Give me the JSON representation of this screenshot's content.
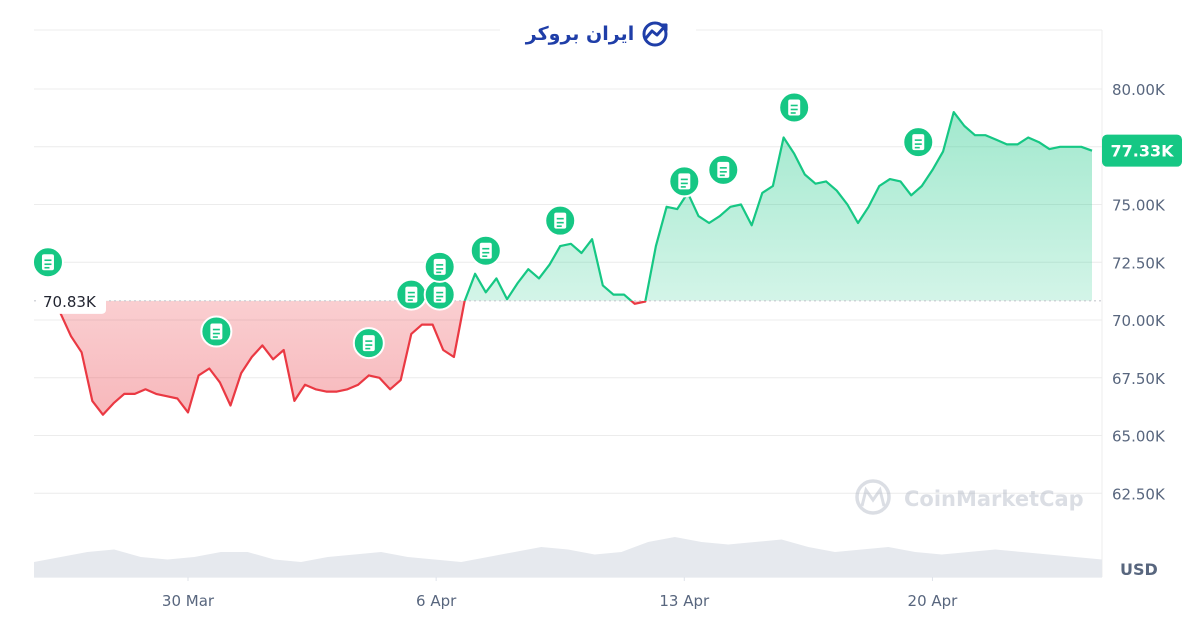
{
  "brand": {
    "name": "ایران بروکر",
    "icon": "trend-chart-logo-icon",
    "color": "#1f3ea8"
  },
  "watermark": {
    "text": "CoinMarketCap",
    "icon": "coinmarketcap-logo-icon"
  },
  "colors": {
    "up": "#16c784",
    "down": "#ea3943",
    "up_fill": "#16c784",
    "down_fill": "#ea3943",
    "grid": "#ececec",
    "axis_text": "#58667e"
  },
  "chart_data": {
    "type": "area",
    "title": "",
    "xlabel": "",
    "ylabel": "USD",
    "baseline": 70.83,
    "baseline_label": "70.83K",
    "current_value": 77.33,
    "current_label": "77.33K",
    "ylim": [
      60.5,
      82.0
    ],
    "yticks": [
      {
        "value": 80.0,
        "label": "80.00K"
      },
      {
        "value": 77.5,
        "label": ""
      },
      {
        "value": 75.0,
        "label": "75.00K"
      },
      {
        "value": 72.5,
        "label": "72.50K"
      },
      {
        "value": 70.0,
        "label": "70.00K"
      },
      {
        "value": 67.5,
        "label": "67.50K"
      },
      {
        "value": 65.0,
        "label": "65.00K"
      },
      {
        "value": 62.5,
        "label": "62.50K"
      }
    ],
    "xlim": [
      -4.0,
      25.5
    ],
    "xticks": [
      {
        "x": 0,
        "label": "30 Mar"
      },
      {
        "x": 7,
        "label": "6 Apr"
      },
      {
        "x": 14,
        "label": "13 Apr"
      },
      {
        "x": 21,
        "label": "20 Apr"
      }
    ],
    "series": [
      {
        "x": [
          -4.0,
          -3.6,
          -3.3,
          -3.0,
          -2.7,
          -2.4,
          -2.1,
          -1.8,
          -1.5,
          -1.2,
          -0.9,
          -0.6,
          -0.3,
          0.0,
          0.3,
          0.6,
          0.9,
          1.2,
          1.5,
          1.8,
          2.1,
          2.4,
          2.7,
          3.0,
          3.3,
          3.6,
          3.9,
          4.2,
          4.5,
          4.8,
          5.1,
          5.4,
          5.7,
          6.0,
          6.3,
          6.6,
          6.9,
          7.2,
          7.5,
          7.8,
          8.1,
          8.4,
          8.7,
          9.0,
          9.3,
          9.6,
          9.9,
          10.2,
          10.5,
          10.8,
          11.1,
          11.4,
          11.7,
          12.0,
          12.3,
          12.6,
          12.9,
          13.2,
          13.5,
          13.8,
          14.1,
          14.4,
          14.7,
          15.0,
          15.3,
          15.6,
          15.9,
          16.2,
          16.5,
          16.8,
          17.1,
          17.4,
          17.7,
          18.0,
          18.3,
          18.6,
          18.9,
          19.2,
          19.5,
          19.8,
          20.1,
          20.4,
          20.7,
          21.0,
          21.3,
          21.6,
          21.9,
          22.2,
          22.5,
          22.8,
          23.1,
          23.4,
          23.7,
          24.0,
          24.3,
          24.6,
          24.9,
          25.2,
          25.5
        ],
        "y": [
          71.2,
          70.3,
          69.3,
          68.6,
          66.5,
          65.9,
          66.4,
          66.8,
          66.8,
          67.0,
          66.8,
          66.7,
          66.6,
          66.0,
          67.6,
          67.9,
          67.3,
          66.3,
          67.7,
          68.4,
          68.9,
          68.3,
          68.7,
          66.5,
          67.2,
          67.0,
          66.9,
          66.9,
          67.0,
          67.2,
          67.6,
          67.5,
          67.0,
          67.4,
          69.4,
          69.8,
          69.8,
          68.7,
          68.4,
          70.8,
          72.0,
          71.2,
          71.8,
          70.9,
          71.6,
          72.2,
          71.8,
          72.4,
          73.2,
          73.3,
          72.9,
          73.5,
          71.5,
          71.1,
          71.1,
          70.7,
          70.8,
          73.2,
          74.9,
          74.8,
          75.5,
          74.5,
          74.2,
          74.5,
          74.9,
          75.0,
          74.1,
          75.5,
          75.8,
          77.9,
          77.2,
          76.3,
          75.9,
          76.0,
          75.6,
          75.0,
          74.2,
          74.9,
          75.8,
          76.1,
          76.0,
          75.4,
          75.8,
          76.5,
          77.3,
          79.0,
          78.4,
          78.0,
          78.0,
          77.8,
          77.6,
          77.6,
          77.9,
          77.7,
          77.4,
          77.5,
          77.5,
          77.5,
          77.33
        ]
      }
    ],
    "events": [
      {
        "x": -3.95,
        "y": 72.5
      },
      {
        "x": 0.8,
        "y": 69.5
      },
      {
        "x": 5.1,
        "y": 69.0
      },
      {
        "x": 6.3,
        "y": 71.1
      },
      {
        "x": 7.1,
        "y": 71.1
      },
      {
        "x": 7.1,
        "y": 72.3
      },
      {
        "x": 8.4,
        "y": 73.0
      },
      {
        "x": 10.5,
        "y": 74.3
      },
      {
        "x": 14.0,
        "y": 76.0
      },
      {
        "x": 15.1,
        "y": 76.5
      },
      {
        "x": 17.1,
        "y": 79.2
      },
      {
        "x": 20.6,
        "y": 77.7
      }
    ],
    "volume": [
      0.3,
      0.4,
      0.5,
      0.55,
      0.4,
      0.35,
      0.4,
      0.5,
      0.5,
      0.35,
      0.3,
      0.4,
      0.45,
      0.5,
      0.4,
      0.35,
      0.3,
      0.4,
      0.5,
      0.6,
      0.55,
      0.45,
      0.5,
      0.7,
      0.8,
      0.7,
      0.65,
      0.7,
      0.75,
      0.6,
      0.5,
      0.55,
      0.6,
      0.5,
      0.45,
      0.5,
      0.55,
      0.5,
      0.45,
      0.4,
      0.35
    ],
    "legend": "none",
    "grid": true
  }
}
